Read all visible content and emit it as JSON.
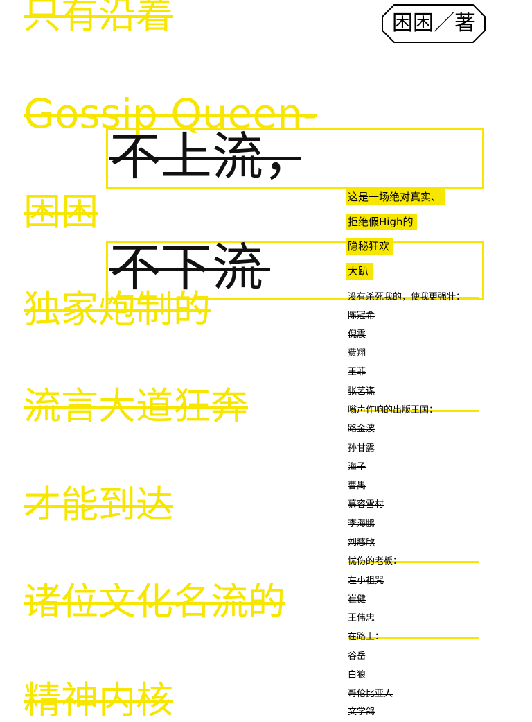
{
  "colors": {
    "accent_yellow": "#f7e600",
    "text_black": "#000000"
  },
  "author_badge": "困困／著",
  "left_phrases": [
    "只有沿着",
    "Gossip Queen-",
    "困困",
    "独家炮制的",
    "流言大道狂奔",
    "才能到达",
    "诸位文化名流的",
    "精神内核"
  ],
  "title": {
    "line1": "不上流，",
    "line2": "不下流"
  },
  "tagline": [
    "这是一场绝对真实、",
    "拒绝假High的",
    "隐秘狂欢",
    "大趴"
  ],
  "sections": [
    {
      "heading": "没有杀死我的，使我更强壮：",
      "names": [
        "陈冠希",
        "倪震",
        "费翔",
        "王菲",
        "张艺谋"
      ]
    },
    {
      "heading": "嗡声作响的出版王国：",
      "names": [
        "路金波",
        "孙甘露",
        "海子",
        "曹禺",
        "慕容雪村",
        "李海鹏",
        "刘慈欣"
      ]
    },
    {
      "heading": "忧伤的老板：",
      "names": [
        "左小祖咒",
        "崔健",
        "王伟忠"
      ]
    },
    {
      "heading": "在路上：",
      "names": [
        "谷岳",
        "白狼",
        "哥伦比亚人",
        "文学鸽"
      ]
    }
  ]
}
